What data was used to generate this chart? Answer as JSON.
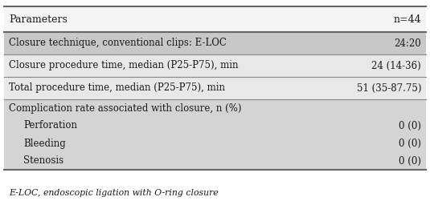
{
  "header_col1": "Parameters",
  "header_col2": "n=44",
  "rows": [
    {
      "label": "Closure technique, conventional clips: E-LOC",
      "value": "24:20",
      "indent": 0,
      "bg": "#c8c8c8",
      "divider_above": true
    },
    {
      "label": "Closure procedure time, median (P25-P75), min",
      "value": "24 (14-36)",
      "indent": 0,
      "bg": "#e8e8e8",
      "divider_above": true
    },
    {
      "label": "Total procedure time, median (P25-P75), min",
      "value": "51 (35-87.75)",
      "indent": 0,
      "bg": "#e8e8e8",
      "divider_above": true
    },
    {
      "label": "Complication rate associated with closure, n (%)",
      "value": "",
      "indent": 0,
      "bg": "#d4d4d4",
      "divider_above": true
    },
    {
      "label": "Perforation",
      "value": "0 (0)",
      "indent": 1,
      "bg": "#d4d4d4",
      "divider_above": false
    },
    {
      "label": "Bleeding",
      "value": "0 (0)",
      "indent": 1,
      "bg": "#d4d4d4",
      "divider_above": false
    },
    {
      "label": "Stenosis",
      "value": "0 (0)",
      "indent": 1,
      "bg": "#d4d4d4",
      "divider_above": false
    }
  ],
  "footer": "E-LOC, endoscopic ligation with O-ring closure",
  "header_bg": "#f5f5f5",
  "line_color": "#666666",
  "divider_color": "#888888",
  "text_color": "#1a1a1a",
  "font_size": 8.5,
  "footer_font_size": 7.8,
  "header_font_size": 9.0,
  "fig_width": 5.35,
  "fig_height": 2.76,
  "dpi": 100
}
